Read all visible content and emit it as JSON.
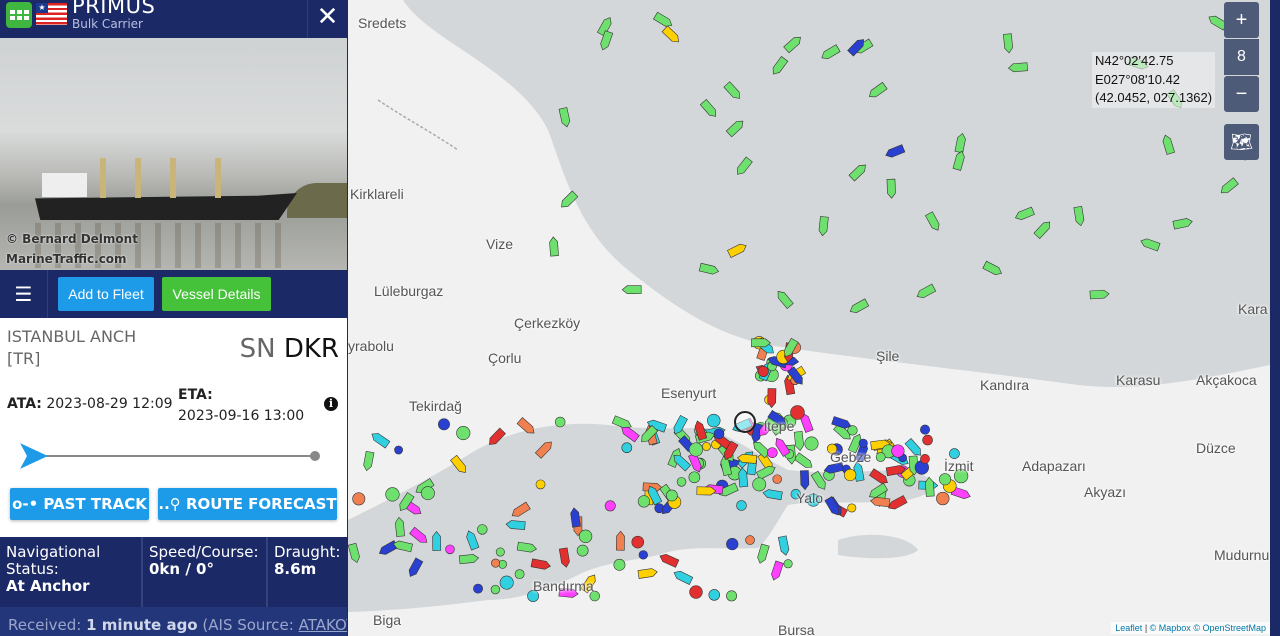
{
  "vessel": {
    "name": "PRIMUS",
    "type": "Bulk Carrier",
    "flag": "Liberia",
    "photo_credit_1": "© Bernard Delmont",
    "photo_credit_2": "MarineTraffic.com"
  },
  "actions": {
    "add_to_fleet": "Add to Fleet",
    "vessel_details": "Vessel Details",
    "past_track": "PAST TRACK",
    "route_forecast": "ROUTE FORECAST"
  },
  "voyage": {
    "port": "ISTANBUL ANCH",
    "country": "[TR]",
    "dest_prefix": "SN",
    "dest_code": "DKR",
    "ata_label": "ATA:",
    "ata": "2023-08-29 12:09",
    "eta_label": "ETA:",
    "eta": "2023-09-16 13:00",
    "progress": 0
  },
  "status": {
    "nav_label": "Navigational Status:",
    "nav_value": "At Anchor",
    "speed_label": "Speed/Course:",
    "speed_value": "0kn / 0°",
    "draught_label": "Draught:",
    "draught_value": "8.6m"
  },
  "received": {
    "label": "Received:",
    "value": "1 minute ago",
    "source_label": "(AIS Source:",
    "source": "ATAKOY"
  },
  "map": {
    "zoom": "8",
    "zoom_in": "+",
    "zoom_out": "−",
    "coord_dms_lat": "N42°02'42.75",
    "coord_dms_lon": "E027°08'10.42",
    "coord_decimal": "(42.0452, 027.1362)",
    "attribution": {
      "leaflet": "Leaflet",
      "mapbox": "© Mapbox",
      "osm": "© OpenStreetMap"
    },
    "places": [
      "Sredets",
      "Kirklareli",
      "Vize",
      "Lüleburgaz",
      "Çerkezköy",
      "yrabolu",
      "Çorlu",
      "Tekirdağ",
      "Esenyurt",
      "ltepe",
      "Gebze",
      "Yalo",
      "İzmit",
      "Adapazarı",
      "Akyazı",
      "Düzce",
      "Şile",
      "Kandıra",
      "Karasu",
      "Akçakoca",
      "Kara",
      "Mudurnu",
      "Biga",
      "Bursa",
      "Bandırma"
    ]
  },
  "colors": {
    "navy": "#1b2a66",
    "accent_blue": "#1e9be8",
    "green": "#46c13a",
    "sea": "#d4d7d9",
    "land": "#f1f1f1"
  }
}
